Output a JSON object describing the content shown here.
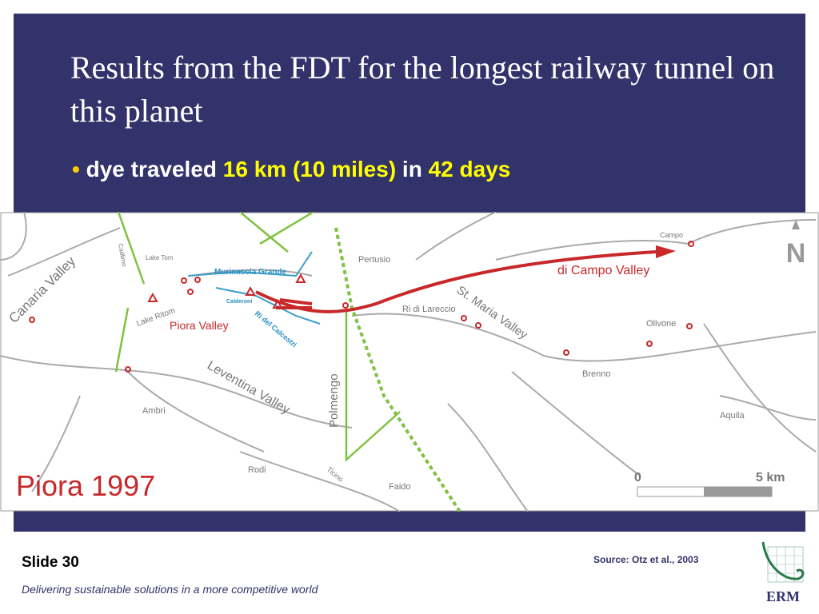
{
  "slide": {
    "title": "Results from the FDT for the longest railway tunnel on this planet",
    "bullet": {
      "parts": [
        "dye traveled",
        "16 km (10 miles)",
        "in",
        "42 days"
      ]
    }
  },
  "map": {
    "labels": [
      "Canaria Valley",
      "Cadlimo",
      "Lake Tom",
      "Murinascia Grande",
      "Calderoni",
      "Lake Ritom",
      "Piora Valley",
      "Ri del Calcestri",
      "Leventina Valley",
      "Ambri",
      "Pertusio",
      "Polmengo",
      "Ri di Lareccio",
      "St. Maria Valley",
      "di Campo Valley",
      "Campo",
      "Olivone",
      "Brenno",
      "Aquila",
      "Rodi",
      "Ticino",
      "Faido"
    ],
    "stamp": "Piora 1997",
    "scale": [
      "0",
      "5 km"
    ],
    "north": "N"
  },
  "footer": {
    "slide_number": "Slide 30",
    "tagline": "Delivering sustainable solutions in a more competitive world",
    "source": "Source: Otz et al., 2003",
    "logo": "ERM"
  }
}
